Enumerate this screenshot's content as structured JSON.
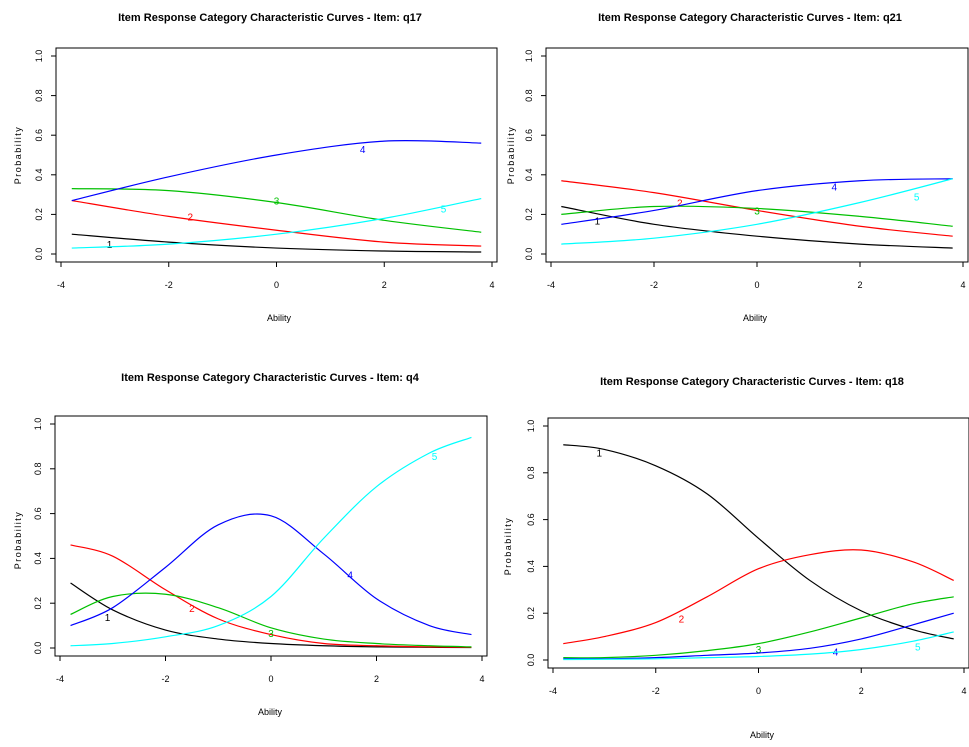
{
  "chart_data": [
    {
      "type": "line",
      "title": "Item Response Category Characteristic Curves - Item: q17",
      "xlabel": "Ability",
      "ylabel": "Probability",
      "xlim": [
        -4,
        4
      ],
      "ylim": [
        0,
        1
      ],
      "xticks": [
        "-4",
        "-2",
        "0",
        "2",
        "4"
      ],
      "yticks": [
        "0.0",
        "0.2",
        "0.4",
        "0.6",
        "0.8",
        "1.0"
      ],
      "grid": false,
      "series": [
        {
          "name": "1",
          "color": "#000000",
          "x": [
            -3.8,
            -2,
            0,
            2,
            3.8
          ],
          "y": [
            0.1,
            0.06,
            0.03,
            0.015,
            0.01
          ],
          "label_at": [
            -3.1,
            0.03
          ]
        },
        {
          "name": "2",
          "color": "#ff0000",
          "x": [
            -3.8,
            -2,
            0,
            2,
            3.8
          ],
          "y": [
            0.27,
            0.19,
            0.12,
            0.06,
            0.04
          ],
          "label_at": [
            -1.6,
            0.17
          ]
        },
        {
          "name": "3",
          "color": "#00c000",
          "x": [
            -3.8,
            -2,
            0,
            2,
            3.8
          ],
          "y": [
            0.33,
            0.32,
            0.26,
            0.17,
            0.11
          ],
          "label_at": [
            0,
            0.25
          ]
        },
        {
          "name": "4",
          "color": "#0000ff",
          "x": [
            -3.8,
            -2,
            0,
            2,
            3.8
          ],
          "y": [
            0.27,
            0.39,
            0.5,
            0.57,
            0.56
          ],
          "label_at": [
            1.6,
            0.51
          ]
        },
        {
          "name": "5",
          "color": "#00ffff",
          "x": [
            -3.8,
            -2,
            0,
            2,
            3.8
          ],
          "y": [
            0.03,
            0.05,
            0.1,
            0.18,
            0.28
          ],
          "label_at": [
            3.1,
            0.21
          ]
        }
      ]
    },
    {
      "type": "line",
      "title": "Item Response Category Characteristic Curves - Item: q21",
      "xlabel": "Ability",
      "ylabel": "Probability",
      "xlim": [
        -4,
        4
      ],
      "ylim": [
        0,
        1
      ],
      "xticks": [
        "-4",
        "-2",
        "0",
        "2",
        "4"
      ],
      "yticks": [
        "0.0",
        "0.2",
        "0.4",
        "0.6",
        "0.8",
        "1.0"
      ],
      "grid": false,
      "series": [
        {
          "name": "1",
          "color": "#000000",
          "x": [
            -3.8,
            -2,
            0,
            2,
            3.8
          ],
          "y": [
            0.24,
            0.15,
            0.09,
            0.05,
            0.03
          ],
          "label_at": [
            -3.1,
            0.15
          ]
        },
        {
          "name": "2",
          "color": "#ff0000",
          "x": [
            -3.8,
            -2,
            0,
            2,
            3.8
          ],
          "y": [
            0.37,
            0.31,
            0.22,
            0.14,
            0.09
          ],
          "label_at": [
            -1.5,
            0.24
          ]
        },
        {
          "name": "3",
          "color": "#00c000",
          "x": [
            -3.8,
            -2,
            0,
            2,
            3.8
          ],
          "y": [
            0.2,
            0.24,
            0.23,
            0.19,
            0.14
          ],
          "label_at": [
            0,
            0.2
          ]
        },
        {
          "name": "4",
          "color": "#0000ff",
          "x": [
            -3.8,
            -2,
            0,
            2,
            3.8
          ],
          "y": [
            0.15,
            0.22,
            0.32,
            0.37,
            0.38
          ],
          "label_at": [
            1.5,
            0.32
          ]
        },
        {
          "name": "5",
          "color": "#00ffff",
          "x": [
            -3.8,
            -2,
            0,
            2,
            3.8
          ],
          "y": [
            0.05,
            0.08,
            0.15,
            0.26,
            0.38
          ],
          "label_at": [
            3.1,
            0.27
          ]
        }
      ]
    },
    {
      "type": "line",
      "title": "Item Response Category Characteristic Curves - Item: q4",
      "xlabel": "Ability",
      "ylabel": "Probability",
      "xlim": [
        -4,
        4
      ],
      "ylim": [
        0,
        1
      ],
      "xticks": [
        "-4",
        "-2",
        "0",
        "2",
        "4"
      ],
      "yticks": [
        "0.0",
        "0.2",
        "0.4",
        "0.6",
        "0.8",
        "1.0"
      ],
      "grid": false,
      "series": [
        {
          "name": "1",
          "color": "#000000",
          "x": [
            -3.8,
            -3,
            -2,
            -1,
            0,
            1,
            2,
            3,
            3.8
          ],
          "y": [
            0.29,
            0.17,
            0.08,
            0.04,
            0.02,
            0.01,
            0.005,
            0.003,
            0.002
          ],
          "label_at": [
            -3.1,
            0.12
          ]
        },
        {
          "name": "2",
          "color": "#ff0000",
          "x": [
            -3.8,
            -3,
            -2,
            -1,
            0,
            1,
            2,
            3,
            3.8
          ],
          "y": [
            0.46,
            0.41,
            0.26,
            0.13,
            0.06,
            0.02,
            0.01,
            0.005,
            0.003
          ],
          "label_at": [
            -1.5,
            0.16
          ]
        },
        {
          "name": "3",
          "color": "#00c000",
          "x": [
            -3.8,
            -3,
            -2,
            -1,
            0,
            1,
            2,
            3,
            3.8
          ],
          "y": [
            0.15,
            0.23,
            0.24,
            0.18,
            0.09,
            0.04,
            0.02,
            0.01,
            0.005
          ],
          "label_at": [
            0,
            0.05
          ]
        },
        {
          "name": "4",
          "color": "#0000ff",
          "x": [
            -3.8,
            -3,
            -2,
            -1,
            0,
            1,
            2,
            3,
            3.8
          ],
          "y": [
            0.1,
            0.18,
            0.36,
            0.55,
            0.59,
            0.42,
            0.22,
            0.1,
            0.06
          ],
          "label_at": [
            1.5,
            0.31
          ]
        },
        {
          "name": "5",
          "color": "#00ffff",
          "x": [
            -3.8,
            -3,
            -2,
            -1,
            0,
            1,
            2,
            3,
            3.8
          ],
          "y": [
            0.01,
            0.02,
            0.05,
            0.1,
            0.23,
            0.49,
            0.72,
            0.87,
            0.94
          ],
          "label_at": [
            3.1,
            0.84
          ]
        }
      ]
    },
    {
      "type": "line",
      "title": "Item Response Category Characteristic Curves - Item: q18",
      "xlabel": "Ability",
      "ylabel": "Probability",
      "xlim": [
        -4,
        4
      ],
      "ylim": [
        0,
        1
      ],
      "xticks": [
        "-4",
        "-2",
        "0",
        "2",
        "4"
      ],
      "yticks": [
        "0.0",
        "0.2",
        "0.4",
        "0.6",
        "0.8",
        "1.0"
      ],
      "grid": false,
      "series": [
        {
          "name": "1",
          "color": "#000000",
          "x": [
            -3.8,
            -3,
            -2,
            -1,
            0,
            1,
            2,
            3,
            3.8
          ],
          "y": [
            0.92,
            0.9,
            0.83,
            0.71,
            0.52,
            0.34,
            0.21,
            0.13,
            0.09
          ],
          "label_at": [
            -3.1,
            0.87
          ]
        },
        {
          "name": "2",
          "color": "#ff0000",
          "x": [
            -3.8,
            -3,
            -2,
            -1,
            0,
            1,
            2,
            3,
            3.8
          ],
          "y": [
            0.07,
            0.1,
            0.16,
            0.27,
            0.39,
            0.45,
            0.47,
            0.42,
            0.34
          ],
          "label_at": [
            -1.5,
            0.16
          ]
        },
        {
          "name": "3",
          "color": "#00c000",
          "x": [
            -3.8,
            -3,
            -2,
            -1,
            0,
            1,
            2,
            3,
            3.8
          ],
          "y": [
            0.01,
            0.01,
            0.02,
            0.04,
            0.07,
            0.12,
            0.18,
            0.24,
            0.27
          ],
          "label_at": [
            0,
            0.03
          ]
        },
        {
          "name": "4",
          "color": "#0000ff",
          "x": [
            -3.8,
            -3,
            -2,
            -1,
            0,
            1,
            2,
            3,
            3.8
          ],
          "y": [
            0.005,
            0.005,
            0.01,
            0.02,
            0.03,
            0.05,
            0.09,
            0.15,
            0.2
          ],
          "label_at": [
            1.5,
            0.02
          ]
        },
        {
          "name": "5",
          "color": "#00ffff",
          "x": [
            -3.8,
            -3,
            -2,
            -1,
            0,
            1,
            2,
            3,
            3.8
          ],
          "y": [
            0.002,
            0.003,
            0.005,
            0.01,
            0.015,
            0.025,
            0.045,
            0.08,
            0.12
          ],
          "label_at": [
            3.1,
            0.04
          ]
        }
      ]
    }
  ]
}
